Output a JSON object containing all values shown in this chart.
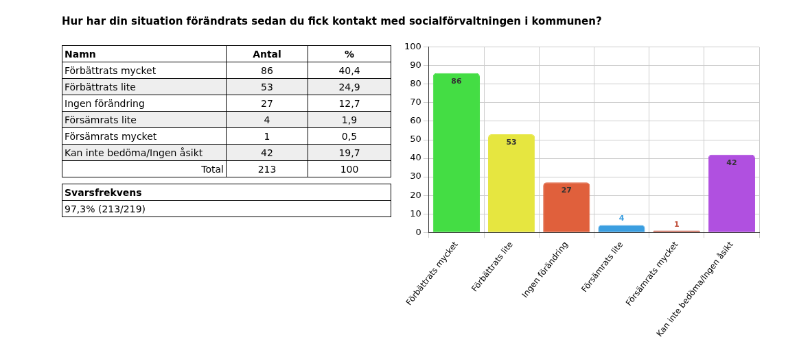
{
  "chart_data": [
    {
      "type": "bar",
      "title": "Hur har din situation förändrats sedan du fick kontakt med socialförvaltningen i kommunen?",
      "categories": [
        "Förbättrats mycket",
        "Förbättrats lite",
        "Ingen förändring",
        "Försämrats lite",
        "Försämrats mycket",
        "Kan inte bedöma/Ingen åsikt"
      ],
      "values": [
        86,
        53,
        27,
        4,
        1,
        42
      ],
      "colors": [
        "#44dd44",
        "#e6e640",
        "#e0603c",
        "#3b9ee0",
        "#c0503c",
        "#b050e0"
      ],
      "data_labels": true,
      "ylim": [
        0,
        100
      ],
      "yticks": [
        0,
        10,
        20,
        30,
        40,
        50,
        60,
        70,
        80,
        90,
        100
      ],
      "grid": true,
      "annotations": [
        "Namn",
        "Antal",
        "%",
        "86",
        "53",
        "27",
        "4",
        "1",
        "42",
        "40,4",
        "24,9",
        "12,7",
        "1,9",
        "0,5",
        "19,7",
        "Total",
        "213",
        "100"
      ]
    },
    {
      "type": "other",
      "title": "Svarsfrekvens",
      "annotations": [
        "97,3% (213/219)"
      ]
    }
  ]
}
